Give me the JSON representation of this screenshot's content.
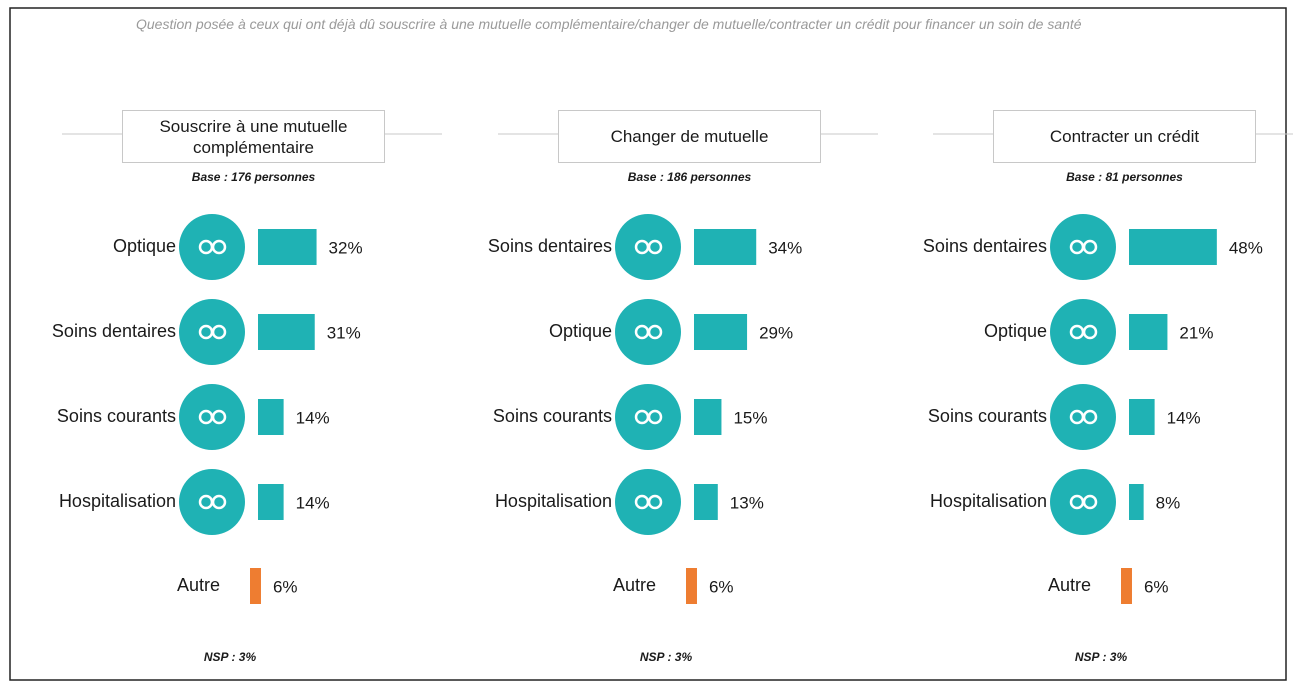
{
  "note": "Question posée à ceux qui ont déjà dû souscrire à une mutuelle complémentaire/changer de mutuelle/contracter un crédit pour financer un soin de santé",
  "chart_data": [
    {
      "type": "bar",
      "title": "Souscrire à une mutuelle complémentaire",
      "subtitle": "Base : 176 personnes",
      "categories": [
        "Optique",
        "Soins dentaires",
        "Soins courants",
        "Hospitalisation",
        "Autre"
      ],
      "values": [
        32,
        31,
        14,
        14,
        6
      ],
      "value_labels": [
        "32%",
        "31%",
        "14%",
        "14%",
        "6%"
      ],
      "colors": [
        "#1fb2b4",
        "#1fb2b4",
        "#1fb2b4",
        "#1fb2b4",
        "#ee7d31"
      ],
      "annotation": "NSP : 3%"
    },
    {
      "type": "bar",
      "title": "Changer de mutuelle",
      "subtitle": "Base : 186 personnes",
      "categories": [
        "Soins dentaires",
        "Optique",
        "Soins courants",
        "Hospitalisation",
        "Autre"
      ],
      "values": [
        34,
        29,
        15,
        13,
        6
      ],
      "value_labels": [
        "34%",
        "29%",
        "15%",
        "13%",
        "6%"
      ],
      "colors": [
        "#1fb2b4",
        "#1fb2b4",
        "#1fb2b4",
        "#1fb2b4",
        "#ee7d31"
      ],
      "annotation": "NSP : 3%"
    },
    {
      "type": "bar",
      "title": "Contracter un crédit",
      "subtitle": "Base : 81 personnes",
      "categories": [
        "Soins dentaires",
        "Optique",
        "Soins courants",
        "Hospitalisation",
        "Autre"
      ],
      "values": [
        48,
        21,
        14,
        8,
        6
      ],
      "value_labels": [
        "48%",
        "21%",
        "14%",
        "8%",
        "6%"
      ],
      "colors": [
        "#1fb2b4",
        "#1fb2b4",
        "#1fb2b4",
        "#1fb2b4",
        "#ee7d31"
      ],
      "annotation": "NSP : 3%"
    }
  ]
}
